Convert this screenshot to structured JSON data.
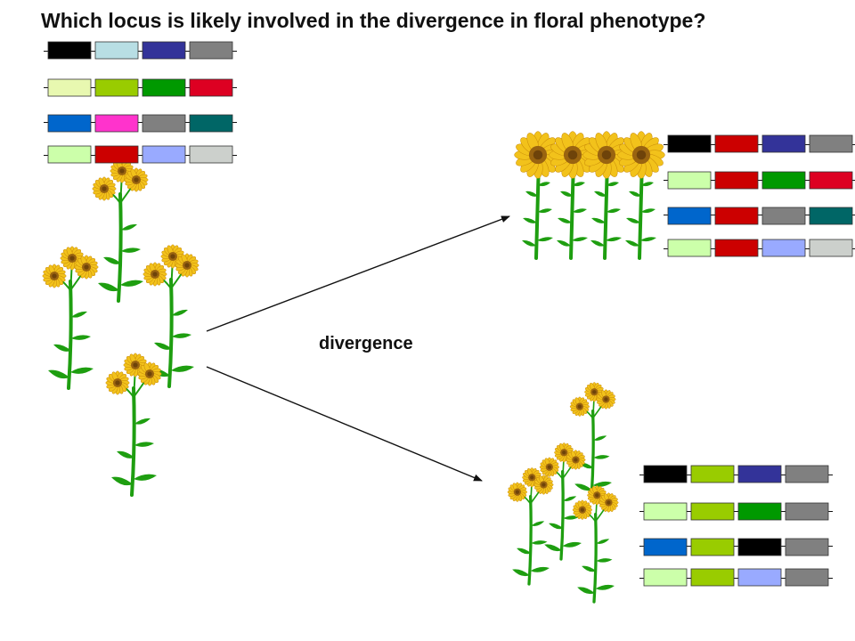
{
  "title": "Which locus is likely involved in the divergence in floral phenotype?",
  "divergence_label": "divergence",
  "colors": {
    "stem": "#1E9E10",
    "petal": "#F2C21B",
    "petal_edge": "#C88A08",
    "disk": "#9A6410",
    "disk_center": "#6E430A",
    "arrow": "#111111",
    "chromosome_line": "#111111",
    "locus_border": "#333333"
  },
  "genotypes": {
    "ancestral": [
      [
        "#000000",
        "#B8DEE4",
        "#333399",
        "#808080"
      ],
      [
        "#E8F8B0",
        "#99CC00",
        "#009900",
        "#DD0022"
      ],
      [
        "#0066CC",
        "#FF33CC",
        "#808080",
        "#006666"
      ],
      [
        "#CCFFAA",
        "#CC0000",
        "#99AAFF",
        "#CCD0CC"
      ]
    ],
    "large_flower_lineage": [
      [
        "#000000",
        "#CC0000",
        "#333399",
        "#808080"
      ],
      [
        "#CCFFAA",
        "#CC0000",
        "#009900",
        "#DD0022"
      ],
      [
        "#0066CC",
        "#CC0000",
        "#808080",
        "#006666"
      ],
      [
        "#CCFFAA",
        "#CC0000",
        "#99AAFF",
        "#CCD0CC"
      ]
    ],
    "small_flower_lineage": [
      [
        "#000000",
        "#99CC00",
        "#333399",
        "#808080"
      ],
      [
        "#CCFFAA",
        "#99CC00",
        "#009900",
        "#808080"
      ],
      [
        "#0066CC",
        "#99CC00",
        "#000000",
        "#808080"
      ],
      [
        "#CCFFAA",
        "#99CC00",
        "#99AAFF",
        "#808080"
      ]
    ]
  }
}
